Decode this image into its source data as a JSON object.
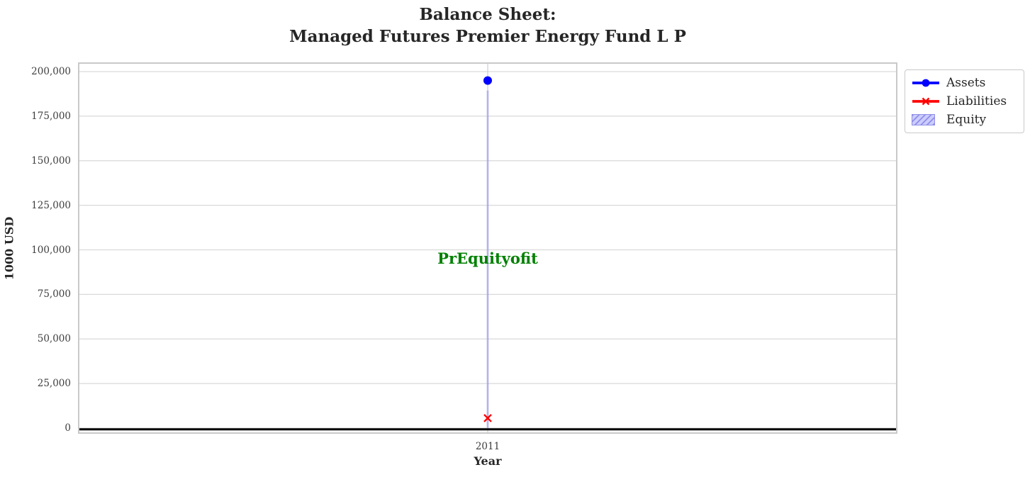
{
  "figure": {
    "title_line1": "Balance Sheet:",
    "title_line2": "Managed Futures Premier Energy Fund L P"
  },
  "axes": {
    "x_label": "Year",
    "y_label": "1000 USD",
    "x_tick_labels": [
      "2011"
    ],
    "y_tick_labels": [
      "0",
      "25,000",
      "50,000",
      "75,000",
      "100,000",
      "125,000",
      "150,000",
      "175,000",
      "200,000"
    ]
  },
  "annotation": {
    "text": "PrEquityofit",
    "color": "#008000"
  },
  "legend": {
    "items": [
      "Assets",
      "Liabilities",
      "Equity"
    ]
  },
  "chart_data": {
    "type": "line",
    "title": "Balance Sheet: Managed Futures Premier Energy Fund L P",
    "xlabel": "Year",
    "ylabel": "1000 USD",
    "x": [
      2011
    ],
    "xticks": [
      2011
    ],
    "yticks": [
      0,
      25000,
      50000,
      75000,
      100000,
      125000,
      150000,
      175000,
      200000
    ],
    "ylim": [
      -3000,
      205000
    ],
    "grid": true,
    "grid_color": "#d9d9d9",
    "legend_position": "outside upper right",
    "series": [
      {
        "name": "Assets",
        "type": "line",
        "marker": "circle",
        "color": "#0000ff",
        "values": [
          195000
        ]
      },
      {
        "name": "Liabilities",
        "type": "line",
        "marker": "x",
        "color": "#ff0000",
        "values": [
          5600
        ]
      },
      {
        "name": "Equity",
        "type": "area",
        "hatch": "//",
        "fill_color": "#ccccff",
        "edge_color": "#8f8fe8",
        "values": [
          189400
        ]
      }
    ],
    "annotation": {
      "text": "PrEquityofit",
      "color": "#008000",
      "x": 2011,
      "y": 95000
    },
    "zero_line": {
      "color": "#000000",
      "linewidth": 3
    }
  }
}
